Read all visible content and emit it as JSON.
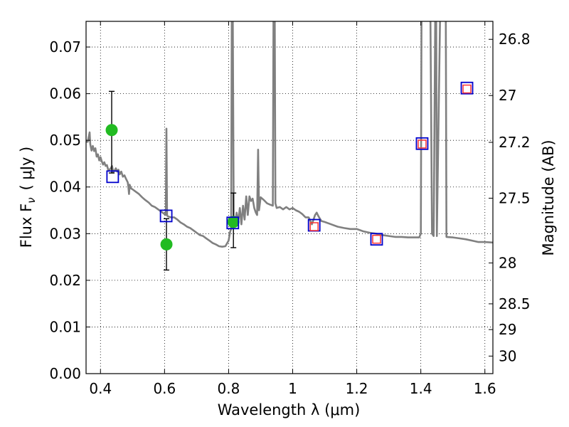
{
  "chart_data": {
    "type": "scatter",
    "xlabel": "Wavelength  λ (μm)",
    "ylabel": "Flux  F",
    "ylabel_sub": "ν",
    "ylabel_units": "( μJy )",
    "ylabel_right": "Magnitude (AB)",
    "xlim": [
      0.355,
      1.625
    ],
    "ylim": [
      0.0,
      0.0755
    ],
    "grid": true,
    "x_ticks": [
      0.4,
      0.6,
      0.8,
      1.0,
      1.2,
      1.4,
      1.6
    ],
    "x_tick_labels": [
      "0.4",
      "0.6",
      "0.8",
      "1",
      "1.2",
      "1.4",
      "1.6"
    ],
    "y_ticks": [
      0.0,
      0.01,
      0.02,
      0.03,
      0.04,
      0.05,
      0.06,
      0.07
    ],
    "y_tick_labels": [
      "0.00",
      "0.01",
      "0.02",
      "0.03",
      "0.04",
      "0.05",
      "0.06",
      "0.07"
    ],
    "right_ticks": [
      {
        "label": "26.8",
        "flux": 0.07165
      },
      {
        "label": "27",
        "flux": 0.0596
      },
      {
        "label": "27.2",
        "flux": 0.04957
      },
      {
        "label": "27.5",
        "flux": 0.0376
      },
      {
        "label": "28",
        "flux": 0.02372
      },
      {
        "label": "28.5",
        "flux": 0.01496
      },
      {
        "label": "29",
        "flux": 0.00944
      },
      {
        "label": "30",
        "flux": 0.00376
      }
    ],
    "series": [
      {
        "type": "line",
        "color": "#808080",
        "points": [
          [
            0.355,
            0.0497
          ],
          [
            0.36,
            0.0497
          ],
          [
            0.364,
            0.051
          ],
          [
            0.366,
            0.0517
          ],
          [
            0.368,
            0.0492
          ],
          [
            0.372,
            0.0478
          ],
          [
            0.376,
            0.0488
          ],
          [
            0.38,
            0.0477
          ],
          [
            0.384,
            0.0483
          ],
          [
            0.388,
            0.0465
          ],
          [
            0.392,
            0.047
          ],
          [
            0.396,
            0.0457
          ],
          [
            0.4,
            0.0464
          ],
          [
            0.404,
            0.0455
          ],
          [
            0.408,
            0.0448
          ],
          [
            0.412,
            0.0453
          ],
          [
            0.416,
            0.0445
          ],
          [
            0.42,
            0.0447
          ],
          [
            0.424,
            0.0437
          ],
          [
            0.428,
            0.0437
          ],
          [
            0.432,
            0.044
          ],
          [
            0.436,
            0.0445
          ],
          [
            0.44,
            0.0432
          ],
          [
            0.444,
            0.0435
          ],
          [
            0.448,
            0.044
          ],
          [
            0.452,
            0.0433
          ],
          [
            0.456,
            0.0437
          ],
          [
            0.46,
            0.0427
          ],
          [
            0.465,
            0.0433
          ],
          [
            0.47,
            0.0422
          ],
          [
            0.475,
            0.0425
          ],
          [
            0.48,
            0.0417
          ],
          [
            0.485,
            0.041
          ],
          [
            0.487,
            0.04
          ],
          [
            0.489,
            0.0385
          ],
          [
            0.491,
            0.0405
          ],
          [
            0.495,
            0.0397
          ],
          [
            0.5,
            0.0395
          ],
          [
            0.51,
            0.039
          ],
          [
            0.52,
            0.0385
          ],
          [
            0.53,
            0.0378
          ],
          [
            0.54,
            0.0372
          ],
          [
            0.55,
            0.0367
          ],
          [
            0.56,
            0.036
          ],
          [
            0.57,
            0.0357
          ],
          [
            0.58,
            0.0352
          ],
          [
            0.59,
            0.0347
          ],
          [
            0.6,
            0.0342
          ],
          [
            0.604,
            0.034
          ],
          [
            0.606,
            0.0525
          ],
          [
            0.608,
            0.034
          ],
          [
            0.61,
            0.0337
          ],
          [
            0.62,
            0.0335
          ],
          [
            0.63,
            0.0335
          ],
          [
            0.64,
            0.033
          ],
          [
            0.65,
            0.0324
          ],
          [
            0.66,
            0.032
          ],
          [
            0.67,
            0.0315
          ],
          [
            0.68,
            0.0312
          ],
          [
            0.69,
            0.0307
          ],
          [
            0.7,
            0.0302
          ],
          [
            0.71,
            0.0297
          ],
          [
            0.72,
            0.0295
          ],
          [
            0.73,
            0.029
          ],
          [
            0.74,
            0.0285
          ],
          [
            0.75,
            0.028
          ],
          [
            0.76,
            0.0277
          ],
          [
            0.77,
            0.0273
          ],
          [
            0.78,
            0.0272
          ],
          [
            0.79,
            0.0273
          ],
          [
            0.8,
            0.0285
          ],
          [
            0.805,
            0.0305
          ],
          [
            0.808,
            0.031
          ],
          [
            0.81,
            0.076
          ],
          [
            0.813,
            0.076
          ],
          [
            0.816,
            0.033
          ],
          [
            0.82,
            0.032
          ],
          [
            0.825,
            0.0345
          ],
          [
            0.83,
            0.0325
          ],
          [
            0.835,
            0.0355
          ],
          [
            0.84,
            0.032
          ],
          [
            0.845,
            0.036
          ],
          [
            0.85,
            0.033
          ],
          [
            0.855,
            0.038
          ],
          [
            0.86,
            0.034
          ],
          [
            0.865,
            0.038
          ],
          [
            0.87,
            0.037
          ],
          [
            0.875,
            0.0375
          ],
          [
            0.88,
            0.0355
          ],
          [
            0.885,
            0.0345
          ],
          [
            0.889,
            0.034
          ],
          [
            0.892,
            0.048
          ],
          [
            0.895,
            0.035
          ],
          [
            0.9,
            0.0378
          ],
          [
            0.91,
            0.0372
          ],
          [
            0.92,
            0.0365
          ],
          [
            0.93,
            0.0362
          ],
          [
            0.938,
            0.036
          ],
          [
            0.94,
            0.076
          ],
          [
            0.944,
            0.076
          ],
          [
            0.946,
            0.0365
          ],
          [
            0.95,
            0.0355
          ],
          [
            0.96,
            0.0357
          ],
          [
            0.97,
            0.0352
          ],
          [
            0.98,
            0.0357
          ],
          [
            0.99,
            0.0352
          ],
          [
            1.0,
            0.0355
          ],
          [
            1.01,
            0.035
          ],
          [
            1.02,
            0.0347
          ],
          [
            1.03,
            0.0342
          ],
          [
            1.04,
            0.0335
          ],
          [
            1.05,
            0.0335
          ],
          [
            1.06,
            0.032
          ],
          [
            1.065,
            0.033
          ],
          [
            1.07,
            0.034
          ],
          [
            1.075,
            0.0345
          ],
          [
            1.08,
            0.0338
          ],
          [
            1.085,
            0.0332
          ],
          [
            1.09,
            0.0327
          ],
          [
            1.1,
            0.0325
          ],
          [
            1.12,
            0.032
          ],
          [
            1.14,
            0.0315
          ],
          [
            1.16,
            0.0312
          ],
          [
            1.18,
            0.031
          ],
          [
            1.2,
            0.031
          ],
          [
            1.22,
            0.0305
          ],
          [
            1.24,
            0.0302
          ],
          [
            1.26,
            0.03
          ],
          [
            1.28,
            0.0297
          ],
          [
            1.3,
            0.0295
          ],
          [
            1.32,
            0.0293
          ],
          [
            1.34,
            0.0293
          ],
          [
            1.36,
            0.0292
          ],
          [
            1.38,
            0.0292
          ],
          [
            1.395,
            0.0292
          ],
          [
            1.4,
            0.03
          ],
          [
            1.402,
            0.076
          ],
          [
            1.43,
            0.076
          ],
          [
            1.435,
            0.03
          ],
          [
            1.44,
            0.0295
          ],
          [
            1.445,
            0.076
          ],
          [
            1.448,
            0.076
          ],
          [
            1.45,
            0.0295
          ],
          [
            1.46,
            0.076
          ],
          [
            1.478,
            0.076
          ],
          [
            1.48,
            0.0293
          ],
          [
            1.5,
            0.0292
          ],
          [
            1.52,
            0.029
          ],
          [
            1.54,
            0.0288
          ],
          [
            1.56,
            0.0285
          ],
          [
            1.58,
            0.0282
          ],
          [
            1.6,
            0.0282
          ],
          [
            1.625,
            0.0281
          ]
        ]
      },
      {
        "type": "errorbar",
        "color": "#22bb22",
        "points": [
          {
            "x": 0.435,
            "y": 0.0522,
            "ylo": 0.043,
            "yhi": 0.0605
          },
          {
            "x": 0.606,
            "y": 0.0277,
            "ylo": 0.0222,
            "yhi": 0.0332
          },
          {
            "x": 0.815,
            "y": 0.0325,
            "ylo": 0.027,
            "yhi": 0.0387
          }
        ]
      },
      {
        "type": "square_marker",
        "color": "#0000cc",
        "points": [
          [
            0.438,
            0.0422
          ],
          [
            0.605,
            0.0338
          ],
          [
            0.813,
            0.0323
          ],
          [
            1.067,
            0.0318
          ],
          [
            1.262,
            0.0288
          ],
          [
            1.404,
            0.0493
          ],
          [
            1.544,
            0.0612
          ]
        ]
      },
      {
        "type": "square_marker",
        "color": "#ff3333",
        "points": [
          [
            1.067,
            0.0315
          ],
          [
            1.262,
            0.0288
          ],
          [
            1.404,
            0.0492
          ],
          [
            1.544,
            0.061
          ]
        ]
      }
    ]
  }
}
